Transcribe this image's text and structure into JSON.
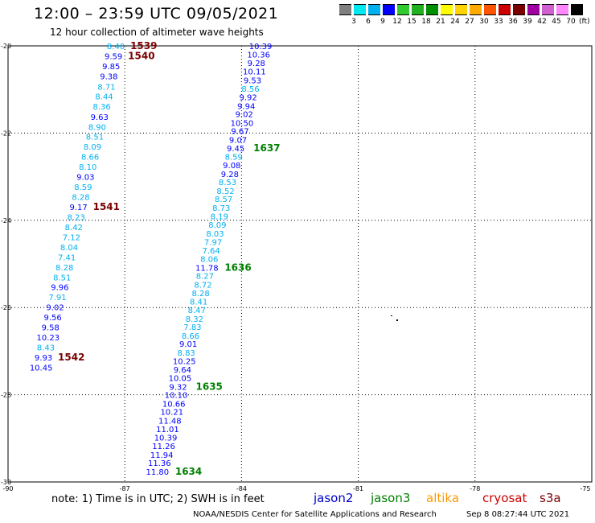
{
  "header": {
    "title": "12:00 – 23:59 UTC 09/05/2021",
    "subtitle": "12 hour collection of altimeter wave heights"
  },
  "legend": {
    "colors": [
      "#7f7f7f",
      "#00e8f0",
      "#00b0f0",
      "#0000ff",
      "#2fcb2f",
      "#20b020",
      "#009000",
      "#ffff00",
      "#ffd200",
      "#ffaa00",
      "#ff5500",
      "#cc0000",
      "#7a0000",
      "#a000a0",
      "#d060d0",
      "#ff88ff",
      "#000000"
    ],
    "labels": [
      "3",
      "6",
      "9",
      "12",
      "15",
      "18",
      "21",
      "24",
      "27",
      "30",
      "33",
      "36",
      "39",
      "42",
      "45",
      "70"
    ],
    "unit": "(ft)"
  },
  "axes": {
    "lon_labels": [
      "-90",
      "-87",
      "-84",
      "-81",
      "-78",
      "-75"
    ],
    "lat_labels": [
      "-20",
      "-22",
      "-24",
      "-26",
      "-28",
      "-30"
    ]
  },
  "footer": {
    "note": "note:  1) Time is in UTC;  2) SWH is in feet",
    "satellites": [
      {
        "name": "jason2",
        "color": "#0000cc"
      },
      {
        "name": "jason3",
        "color": "#008000"
      },
      {
        "name": "altika",
        "color": "#ff9900"
      },
      {
        "name": "cryosat",
        "color": "#cc0000"
      },
      {
        "name": "s3a",
        "color": "#7a0000"
      }
    ],
    "credit": "NOAA/NESDIS Center for Satellite Applications and Research",
    "timestamp": "Sep  8 08:27:44 UTC 2021"
  },
  "map_data": {
    "lon_range": [
      -90,
      -75
    ],
    "lat_range": [
      -30,
      -20
    ],
    "tracks": [
      {
        "points": [
          {
            "lon": -87.23,
            "lat": -20.0,
            "v": "8.40"
          },
          {
            "lon": -87.29,
            "lat": -20.23,
            "v": "9.59"
          },
          {
            "lon": -87.35,
            "lat": -20.46,
            "v": "9.85"
          },
          {
            "lon": -87.41,
            "lat": -20.69,
            "v": "9.38"
          },
          {
            "lon": -87.47,
            "lat": -20.93,
            "v": "8.71"
          },
          {
            "lon": -87.53,
            "lat": -21.15,
            "v": "8.44"
          },
          {
            "lon": -87.59,
            "lat": -21.38,
            "v": "8.36"
          },
          {
            "lon": -87.65,
            "lat": -21.62,
            "v": "9.63"
          },
          {
            "lon": -87.71,
            "lat": -21.85,
            "v": "8.90"
          },
          {
            "lon": -87.77,
            "lat": -22.08,
            "v": "8.51"
          },
          {
            "lon": -87.83,
            "lat": -22.31,
            "v": "8.09"
          },
          {
            "lon": -87.89,
            "lat": -22.54,
            "v": "8.66"
          },
          {
            "lon": -87.95,
            "lat": -22.77,
            "v": "8.10"
          },
          {
            "lon": -88.01,
            "lat": -23.0,
            "v": "9.03"
          },
          {
            "lon": -88.07,
            "lat": -23.23,
            "v": "8.59"
          },
          {
            "lon": -88.13,
            "lat": -23.46,
            "v": "8.28"
          },
          {
            "lon": -88.19,
            "lat": -23.69,
            "v": "9.17"
          },
          {
            "lon": -88.25,
            "lat": -23.92,
            "v": "8.23"
          },
          {
            "lon": -88.31,
            "lat": -24.15,
            "v": "8.42"
          },
          {
            "lon": -88.37,
            "lat": -24.38,
            "v": "7.12"
          },
          {
            "lon": -88.43,
            "lat": -24.61,
            "v": "8.04"
          },
          {
            "lon": -88.49,
            "lat": -24.84,
            "v": "7.41"
          },
          {
            "lon": -88.55,
            "lat": -25.07,
            "v": "8.28"
          },
          {
            "lon": -88.61,
            "lat": -25.3,
            "v": "8.51"
          },
          {
            "lon": -88.67,
            "lat": -25.53,
            "v": "9.96"
          },
          {
            "lon": -88.73,
            "lat": -25.76,
            "v": "7.91"
          },
          {
            "lon": -88.79,
            "lat": -25.99,
            "v": "9.02"
          },
          {
            "lon": -88.85,
            "lat": -26.22,
            "v": "9.56"
          },
          {
            "lon": -88.91,
            "lat": -26.45,
            "v": "9.58"
          },
          {
            "lon": -88.97,
            "lat": -26.68,
            "v": "10.23"
          },
          {
            "lon": -89.03,
            "lat": -26.91,
            "v": "8.43"
          },
          {
            "lon": -89.09,
            "lat": -27.14,
            "v": "9.93"
          },
          {
            "lon": -89.15,
            "lat": -27.37,
            "v": "10.45"
          }
        ],
        "labels": [
          {
            "lon": -87.23,
            "lat": -20.0,
            "text": "1539",
            "color": "#7a0000"
          },
          {
            "lon": -87.29,
            "lat": -20.23,
            "text": "1540",
            "color": "#7a0000"
          },
          {
            "lon": -88.19,
            "lat": -23.69,
            "text": "1541",
            "color": "#7a0000"
          },
          {
            "lon": -89.09,
            "lat": -27.14,
            "text": "1542",
            "color": "#7a0000"
          }
        ]
      },
      {
        "points": [
          {
            "lon": -83.51,
            "lat": -20.0,
            "v": "10.39"
          },
          {
            "lon": -83.56,
            "lat": -20.19,
            "v": "10.36"
          },
          {
            "lon": -83.62,
            "lat": -20.39,
            "v": "9.28"
          },
          {
            "lon": -83.67,
            "lat": -20.58,
            "v": "10.11"
          },
          {
            "lon": -83.72,
            "lat": -20.78,
            "v": "9.53"
          },
          {
            "lon": -83.77,
            "lat": -20.98,
            "v": "8.56"
          },
          {
            "lon": -83.83,
            "lat": -21.17,
            "v": "9.92"
          },
          {
            "lon": -83.88,
            "lat": -21.37,
            "v": "9.94"
          },
          {
            "lon": -83.93,
            "lat": -21.56,
            "v": "9.02"
          },
          {
            "lon": -83.99,
            "lat": -21.76,
            "v": "10.50"
          },
          {
            "lon": -84.04,
            "lat": -21.95,
            "v": "9.67"
          },
          {
            "lon": -84.09,
            "lat": -22.15,
            "v": "9.07"
          },
          {
            "lon": -84.15,
            "lat": -22.34,
            "v": "9.45"
          },
          {
            "lon": -84.2,
            "lat": -22.54,
            "v": "8.59"
          },
          {
            "lon": -84.25,
            "lat": -22.73,
            "v": "9.08"
          },
          {
            "lon": -84.3,
            "lat": -22.93,
            "v": "9.28"
          },
          {
            "lon": -84.36,
            "lat": -23.12,
            "v": "8.53"
          },
          {
            "lon": -84.41,
            "lat": -23.32,
            "v": "8.52"
          },
          {
            "lon": -84.46,
            "lat": -23.51,
            "v": "8.57"
          },
          {
            "lon": -84.52,
            "lat": -23.71,
            "v": "8.73"
          },
          {
            "lon": -84.57,
            "lat": -23.9,
            "v": "8.19"
          },
          {
            "lon": -84.62,
            "lat": -24.1,
            "v": "8.09"
          },
          {
            "lon": -84.68,
            "lat": -24.3,
            "v": "8.03"
          },
          {
            "lon": -84.73,
            "lat": -24.49,
            "v": "7.97"
          },
          {
            "lon": -84.78,
            "lat": -24.69,
            "v": "7.64"
          },
          {
            "lon": -84.83,
            "lat": -24.88,
            "v": "8.06"
          },
          {
            "lon": -84.89,
            "lat": -25.08,
            "v": "11.78"
          },
          {
            "lon": -84.94,
            "lat": -25.27,
            "v": "8.27"
          },
          {
            "lon": -84.99,
            "lat": -25.47,
            "v": "8.72"
          },
          {
            "lon": -85.05,
            "lat": -25.66,
            "v": "8.28"
          },
          {
            "lon": -85.1,
            "lat": -25.86,
            "v": "8.41"
          },
          {
            "lon": -85.15,
            "lat": -26.05,
            "v": "8.47"
          },
          {
            "lon": -85.21,
            "lat": -26.25,
            "v": "8.32"
          },
          {
            "lon": -85.26,
            "lat": -26.44,
            "v": "7.83"
          },
          {
            "lon": -85.31,
            "lat": -26.64,
            "v": "8.66"
          },
          {
            "lon": -85.37,
            "lat": -26.83,
            "v": "9.01"
          },
          {
            "lon": -85.42,
            "lat": -27.03,
            "v": "8.83"
          },
          {
            "lon": -85.47,
            "lat": -27.22,
            "v": "10.25"
          },
          {
            "lon": -85.52,
            "lat": -27.42,
            "v": "9.64"
          },
          {
            "lon": -85.58,
            "lat": -27.61,
            "v": "10.05"
          },
          {
            "lon": -85.63,
            "lat": -27.81,
            "v": "9.32"
          },
          {
            "lon": -85.68,
            "lat": -28.0,
            "v": "10.10"
          },
          {
            "lon": -85.74,
            "lat": -28.2,
            "v": "10.66"
          },
          {
            "lon": -85.79,
            "lat": -28.39,
            "v": "10.21"
          },
          {
            "lon": -85.84,
            "lat": -28.59,
            "v": "11.48"
          },
          {
            "lon": -85.9,
            "lat": -28.78,
            "v": "11.01"
          },
          {
            "lon": -85.95,
            "lat": -28.98,
            "v": "10.39"
          },
          {
            "lon": -86.0,
            "lat": -29.17,
            "v": "11.26"
          },
          {
            "lon": -86.05,
            "lat": -29.37,
            "v": "11.94"
          },
          {
            "lon": -86.11,
            "lat": -29.56,
            "v": "11.36"
          },
          {
            "lon": -86.16,
            "lat": -29.76,
            "v": "11.80"
          }
        ],
        "labels": [
          {
            "lon": -84.15,
            "lat": -22.34,
            "text": "1637",
            "color": "#008000"
          },
          {
            "lon": -84.89,
            "lat": -25.08,
            "text": "1636",
            "color": "#008000"
          },
          {
            "lon": -85.63,
            "lat": -27.81,
            "text": "1635",
            "color": "#008000"
          },
          {
            "lon": -86.16,
            "lat": -29.76,
            "text": "1634",
            "color": "#008000"
          }
        ]
      }
    ]
  }
}
